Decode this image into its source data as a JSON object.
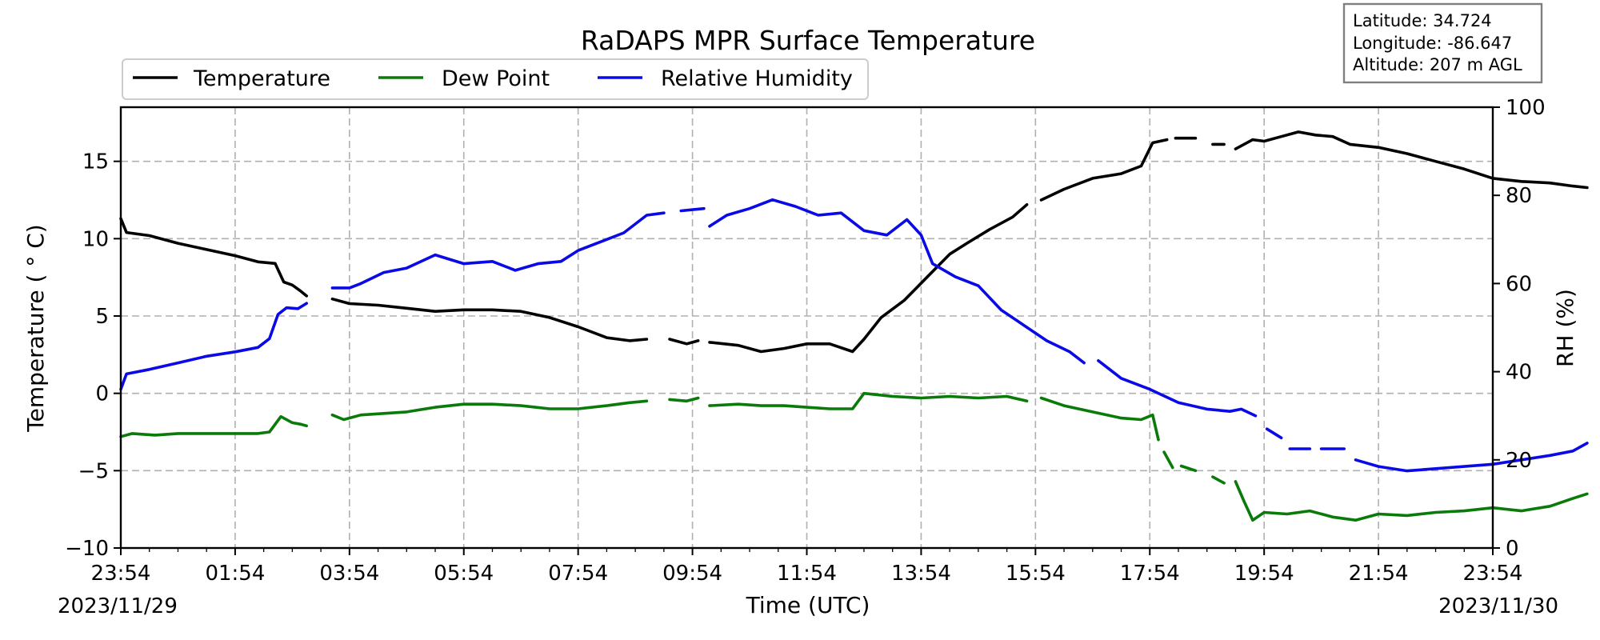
{
  "chart_data": {
    "type": "line",
    "title": "RaDAPS MPR Surface Temperature",
    "xlabel": "Time (UTC)",
    "ylabel": "Temperature ($^\\circ$C)",
    "ylabel_display": "Temperature ( ° C)",
    "y2label": "RH (%)",
    "x_tick_labels": [
      "23:54",
      "01:54",
      "03:54",
      "05:54",
      "07:54",
      "09:54",
      "11:54",
      "13:54",
      "15:54",
      "17:54",
      "19:54",
      "21:54",
      "23:54"
    ],
    "date_start": "2023/11/29",
    "date_end": "2023/11/30",
    "ylim": [
      -10,
      18.5
    ],
    "y_ticks": [
      "15",
      "10",
      "5",
      "0",
      "−5",
      "−10"
    ],
    "y2lim": [
      0,
      100
    ],
    "y2_ticks": [
      "100",
      "80",
      "60",
      "40",
      "20",
      "0"
    ],
    "grid": true,
    "legend_placement": "upper-left, above plot",
    "info_box": [
      "Latitude: 34.724",
      "Longitude: -86.647",
      "Altitude: 207 m AGL"
    ],
    "x_unit": "hours since 23:54 UTC 2023/11/29",
    "series": [
      {
        "name": "Temperature",
        "color": "#000000",
        "axis": "left",
        "segments": [
          [
            [
              0,
              11.3
            ],
            [
              0.1,
              10.4
            ],
            [
              0.5,
              10.2
            ],
            [
              1,
              9.7
            ],
            [
              1.5,
              9.3
            ],
            [
              2,
              8.9
            ],
            [
              2.4,
              8.5
            ],
            [
              2.7,
              8.4
            ],
            [
              2.85,
              7.2
            ],
            [
              3,
              7
            ],
            [
              3.15,
              6.6
            ],
            [
              3.25,
              6.3
            ]
          ],
          [
            [
              3.7,
              6.1
            ],
            [
              4,
              5.8
            ],
            [
              4.5,
              5.7
            ],
            [
              5,
              5.5
            ],
            [
              5.5,
              5.3
            ],
            [
              6,
              5.4
            ],
            [
              6.5,
              5.4
            ],
            [
              7,
              5.3
            ],
            [
              7.5,
              4.9
            ],
            [
              8,
              4.3
            ],
            [
              8.5,
              3.6
            ],
            [
              8.9,
              3.4
            ],
            [
              9.2,
              3.5
            ]
          ],
          [
            [
              9.6,
              3.5
            ],
            [
              9.9,
              3.2
            ],
            [
              10.1,
              3.4
            ]
          ],
          [
            [
              10.3,
              3.3
            ],
            [
              10.8,
              3.1
            ],
            [
              11.2,
              2.7
            ],
            [
              11.6,
              2.9
            ],
            [
              12,
              3.2
            ],
            [
              12.4,
              3.2
            ],
            [
              12.8,
              2.7
            ],
            [
              13,
              3.5
            ],
            [
              13.3,
              4.9
            ],
            [
              13.7,
              6
            ],
            [
              14.1,
              7.5
            ],
            [
              14.5,
              9
            ],
            [
              14.8,
              9.7
            ],
            [
              15.2,
              10.6
            ],
            [
              15.6,
              11.4
            ],
            [
              15.85,
              12.2
            ]
          ],
          [
            [
              16.1,
              12.5
            ],
            [
              16.5,
              13.2
            ],
            [
              17,
              13.9
            ],
            [
              17.5,
              14.2
            ],
            [
              17.85,
              14.7
            ],
            [
              18.05,
              16.2
            ],
            [
              18.3,
              16.4
            ]
          ],
          [
            [
              18.45,
              16.5
            ],
            [
              18.8,
              16.5
            ]
          ],
          [
            [
              19.1,
              16.1
            ],
            [
              19.3,
              16.1
            ]
          ],
          [
            [
              19.5,
              15.8
            ],
            [
              19.8,
              16.4
            ],
            [
              20,
              16.3
            ],
            [
              20.3,
              16.6
            ],
            [
              20.6,
              16.9
            ],
            [
              20.9,
              16.7
            ],
            [
              21.2,
              16.6
            ],
            [
              21.5,
              16.1
            ],
            [
              22,
              15.9
            ],
            [
              22.5,
              15.5
            ],
            [
              23,
              15
            ],
            [
              23.5,
              14.5
            ],
            [
              24,
              13.9
            ],
            [
              24.5,
              13.7
            ],
            [
              25,
              13.6
            ],
            [
              25.4,
              13.4
            ],
            [
              25.65,
              13.3
            ]
          ]
        ]
      },
      {
        "name": "Dew Point",
        "color": "#0a7a0a",
        "axis": "left",
        "segments": [
          [
            [
              0,
              -2.8
            ],
            [
              0.2,
              -2.6
            ],
            [
              0.6,
              -2.7
            ],
            [
              1,
              -2.6
            ],
            [
              1.5,
              -2.6
            ],
            [
              2,
              -2.6
            ],
            [
              2.4,
              -2.6
            ],
            [
              2.6,
              -2.5
            ],
            [
              2.8,
              -1.5
            ],
            [
              3,
              -1.9
            ],
            [
              3.15,
              -2
            ],
            [
              3.25,
              -2.1
            ]
          ],
          [
            [
              3.7,
              -1.4
            ],
            [
              3.9,
              -1.7
            ],
            [
              4.2,
              -1.4
            ],
            [
              4.6,
              -1.3
            ],
            [
              5,
              -1.2
            ],
            [
              5.5,
              -0.9
            ],
            [
              6,
              -0.7
            ],
            [
              6.5,
              -0.7
            ],
            [
              7,
              -0.8
            ],
            [
              7.5,
              -1
            ],
            [
              8,
              -1
            ],
            [
              8.5,
              -0.8
            ],
            [
              8.9,
              -0.6
            ],
            [
              9.2,
              -0.5
            ]
          ],
          [
            [
              9.6,
              -0.4
            ],
            [
              9.9,
              -0.5
            ],
            [
              10.1,
              -0.3
            ]
          ],
          [
            [
              10.3,
              -0.8
            ],
            [
              10.8,
              -0.7
            ],
            [
              11.2,
              -0.8
            ],
            [
              11.6,
              -0.8
            ],
            [
              12,
              -0.9
            ],
            [
              12.4,
              -1
            ],
            [
              12.8,
              -1
            ],
            [
              13,
              0
            ],
            [
              13.5,
              -0.2
            ],
            [
              14,
              -0.3
            ],
            [
              14.5,
              -0.2
            ],
            [
              15,
              -0.3
            ],
            [
              15.5,
              -0.2
            ],
            [
              15.85,
              -0.5
            ]
          ],
          [
            [
              16.1,
              -0.3
            ],
            [
              16.5,
              -0.8
            ],
            [
              17,
              -1.2
            ],
            [
              17.5,
              -1.6
            ],
            [
              17.85,
              -1.7
            ],
            [
              18.05,
              -1.4
            ],
            [
              18.15,
              -3
            ]
          ],
          [
            [
              18.25,
              -3.8
            ],
            [
              18.4,
              -4.8
            ]
          ],
          [
            [
              18.55,
              -4.7
            ],
            [
              18.8,
              -5
            ]
          ],
          [
            [
              19.1,
              -5.4
            ],
            [
              19.3,
              -5.8
            ]
          ],
          [
            [
              19.5,
              -5.7
            ],
            [
              19.65,
              -7
            ],
            [
              19.8,
              -8.2
            ],
            [
              20,
              -7.7
            ],
            [
              20.4,
              -7.8
            ],
            [
              20.8,
              -7.6
            ],
            [
              21.2,
              -8
            ],
            [
              21.6,
              -8.2
            ],
            [
              22,
              -7.8
            ],
            [
              22.5,
              -7.9
            ],
            [
              23,
              -7.7
            ],
            [
              23.5,
              -7.6
            ],
            [
              24,
              -7.4
            ],
            [
              24.5,
              -7.6
            ],
            [
              25,
              -7.3
            ],
            [
              25.4,
              -6.8
            ],
            [
              25.65,
              -6.5
            ]
          ]
        ]
      },
      {
        "name": "Relative Humidity",
        "color": "#0a0ae6",
        "axis": "right",
        "segments": [
          [
            [
              0,
              36
            ],
            [
              0.1,
              39.5
            ],
            [
              0.5,
              40.5
            ],
            [
              1,
              42
            ],
            [
              1.5,
              43.5
            ],
            [
              2,
              44.5
            ],
            [
              2.4,
              45.5
            ],
            [
              2.6,
              47.5
            ],
            [
              2.75,
              53
            ],
            [
              2.9,
              54.5
            ],
            [
              3.1,
              54.3
            ],
            [
              3.25,
              55.5
            ]
          ],
          [
            [
              3.7,
              59
            ],
            [
              4,
              59
            ],
            [
              4.2,
              60
            ],
            [
              4.6,
              62.5
            ],
            [
              5,
              63.5
            ],
            [
              5.5,
              66.5
            ],
            [
              6,
              64.5
            ],
            [
              6.5,
              65
            ],
            [
              6.9,
              63
            ],
            [
              7.3,
              64.5
            ],
            [
              7.7,
              65
            ],
            [
              8,
              67.5
            ],
            [
              8.4,
              69.5
            ],
            [
              8.8,
              71.5
            ],
            [
              9.2,
              75.5
            ],
            [
              9.5,
              76
            ]
          ],
          [
            [
              9.8,
              76.5
            ],
            [
              10.2,
              77
            ]
          ],
          [
            [
              10.3,
              73
            ],
            [
              10.6,
              75.5
            ],
            [
              11,
              77
            ],
            [
              11.4,
              79
            ],
            [
              11.8,
              77.5
            ],
            [
              12.2,
              75.5
            ],
            [
              12.6,
              76
            ],
            [
              13,
              72
            ],
            [
              13.4,
              71
            ],
            [
              13.75,
              74.5
            ],
            [
              14,
              71
            ],
            [
              14.2,
              64.5
            ],
            [
              14.6,
              61.5
            ],
            [
              15,
              59.5
            ],
            [
              15.4,
              54
            ],
            [
              15.8,
              50.5
            ],
            [
              16.2,
              47
            ],
            [
              16.6,
              44.5
            ],
            [
              16.85,
              42
            ]
          ],
          [
            [
              17.1,
              42.5
            ],
            [
              17.5,
              38.5
            ],
            [
              18,
              36
            ],
            [
              18.5,
              33
            ],
            [
              19,
              31.5
            ],
            [
              19.4,
              31
            ],
            [
              19.6,
              31.5
            ],
            [
              19.85,
              30
            ]
          ],
          [
            [
              20.05,
              27
            ],
            [
              20.3,
              25
            ]
          ],
          [
            [
              20.45,
              22.5
            ],
            [
              20.8,
              22.5
            ]
          ],
          [
            [
              21,
              22.5
            ],
            [
              21.4,
              22.5
            ]
          ],
          [
            [
              21.6,
              20
            ],
            [
              22,
              18.5
            ],
            [
              22.5,
              17.5
            ],
            [
              23,
              18
            ],
            [
              23.5,
              18.5
            ],
            [
              24,
              19
            ],
            [
              24.5,
              20
            ],
            [
              25,
              21
            ],
            [
              25.4,
              22
            ],
            [
              25.65,
              23.8
            ]
          ]
        ]
      }
    ]
  }
}
